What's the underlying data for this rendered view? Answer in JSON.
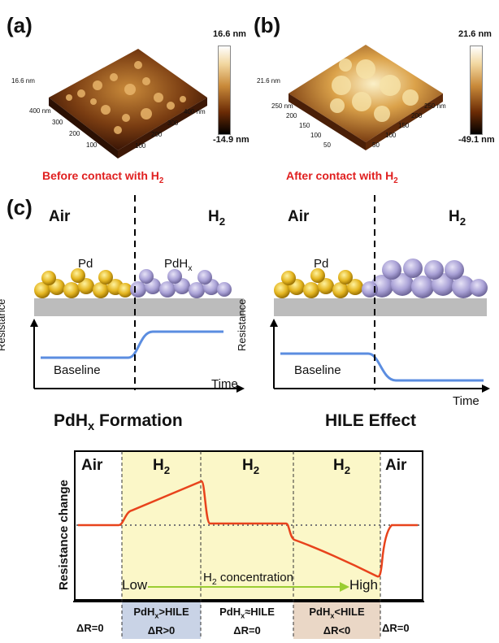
{
  "panel_a": {
    "label": "(a)",
    "z_tick": "16.6 nm",
    "scale_max": "16.6 nm",
    "scale_min": "-14.9 nm",
    "axis_left": [
      "400 nm",
      "300",
      "200",
      "100"
    ],
    "axis_right": [
      "400 nm",
      "300",
      "200",
      "100"
    ]
  },
  "panel_b": {
    "label": "(b)",
    "z_tick": "21.6 nm",
    "scale_max": "21.6 nm",
    "scale_min": "-49.1 nm",
    "axis_left": [
      "250 nm",
      "200",
      "150",
      "100",
      "50"
    ],
    "axis_right": [
      "250 nm",
      "200",
      "150",
      "100",
      "50"
    ]
  },
  "captions": {
    "before": "Before contact with H",
    "after": "After contact with H",
    "sub2": "2"
  },
  "panel_c": {
    "label": "(c)",
    "left": {
      "air": "Air",
      "h2": "H",
      "pd": "Pd",
      "pdhx": "PdH",
      "x_sub": "x",
      "ylabel": "Resistance",
      "xlabel": "Time",
      "baseline": "Baseline",
      "title": "PdH",
      "title_rest": " Formation"
    },
    "right": {
      "air": "Air",
      "h2": "H",
      "pd": "Pd",
      "ylabel": "Resistance",
      "xlabel": "Time",
      "baseline": "Baseline",
      "title": "HILE Effect"
    }
  },
  "bottom_chart": {
    "ylabel": "Resistance change",
    "regions": [
      "Air",
      "H",
      "H",
      "H",
      "Air"
    ],
    "low": "Low",
    "conc": "H",
    "conc_rest": " concentration",
    "high": "High",
    "cells": [
      {
        "l1": "ΔR=0",
        "l2": ""
      },
      {
        "l1": "PdH",
        "l1b": ">HILE",
        "l2": "ΔR>0"
      },
      {
        "l1": "PdH",
        "l1b": "≈HILE",
        "l2": "ΔR=0"
      },
      {
        "l1": "PdH",
        "l1b": "<HILE",
        "l2": "ΔR<0"
      },
      {
        "l1": "ΔR=0",
        "l2": ""
      }
    ],
    "colors": {
      "h2_fill": "#fbf7c8",
      "curve": "#e8431c",
      "cell_blue": "#c9d3e6",
      "cell_tan": "#ead7c6",
      "arrow": "#9acd32"
    }
  }
}
